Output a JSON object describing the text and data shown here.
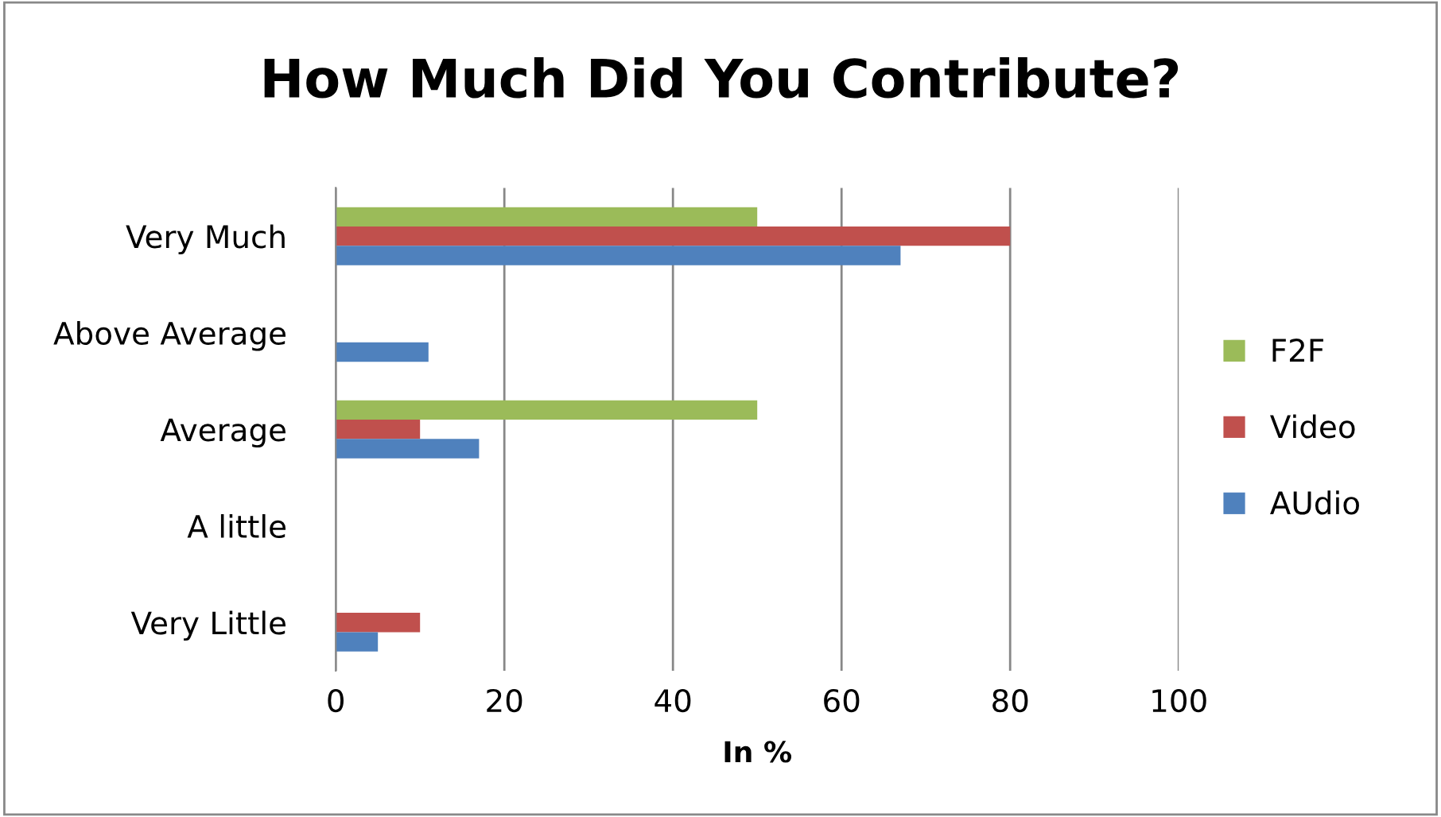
{
  "chart_data": {
    "type": "bar",
    "orientation": "horizontal",
    "title": "How Much Did You Contribute?",
    "xlabel": "In %",
    "categories": [
      "Very Much",
      "Above Average",
      "Average",
      "A little",
      "Very Little"
    ],
    "series": [
      {
        "name": "F2F",
        "color": "#9bbb59",
        "values": [
          50,
          0,
          50,
          0,
          0
        ]
      },
      {
        "name": "Video",
        "color": "#c0504d",
        "values": [
          80,
          0,
          10,
          0,
          10
        ]
      },
      {
        "name": "AUdio",
        "color": "#4f81bd",
        "values": [
          67,
          11,
          17,
          0,
          5
        ]
      }
    ],
    "xlim": [
      0,
      100
    ],
    "xticks": [
      0,
      20,
      40,
      60,
      80,
      100
    ],
    "grid": "x",
    "legend": "right"
  }
}
